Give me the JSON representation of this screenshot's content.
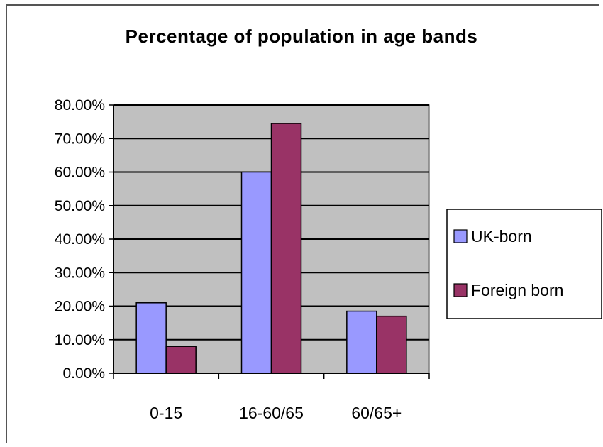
{
  "chart_data": {
    "type": "bar",
    "title": "Percentage of population in age bands",
    "categories": [
      "0-15",
      "16-60/65",
      "60/65+"
    ],
    "series": [
      {
        "name": "UK-born",
        "values": [
          21.0,
          60.0,
          18.5
        ],
        "color": "#9999ff"
      },
      {
        "name": "Foreign born",
        "values": [
          8.0,
          74.5,
          17.0
        ],
        "color": "#993366"
      }
    ],
    "ylim": [
      0,
      80
    ],
    "yticks": [
      "0.00%",
      "10.00%",
      "20.00%",
      "30.00%",
      "40.00%",
      "50.00%",
      "60.00%",
      "70.00%",
      "80.00%"
    ],
    "plot_background": "#c0c0c0",
    "grid": true,
    "legend_position": "right"
  }
}
